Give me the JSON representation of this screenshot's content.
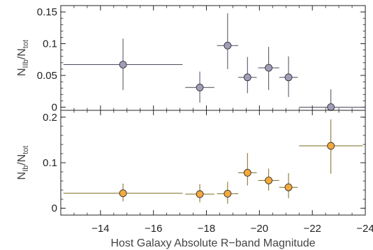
{
  "chart_data": [
    {
      "type": "scatter",
      "ylabel_main": "N",
      "ylabel_sub1": "IIb",
      "ylabel_sep": "/N",
      "ylabel_sub2": "tot",
      "xlim": [
        -12.5,
        -24
      ],
      "ylim": [
        -0.005,
        0.16
      ],
      "yticks": [
        0,
        0.05,
        0.1,
        0.15
      ],
      "ytick_labels": [
        "0",
        "0.05",
        "0.1",
        "0.15"
      ],
      "marker_color": "#a09db9",
      "errorbar_color": "#4a4a5e",
      "points": [
        {
          "x": -14.85,
          "y": 0.067,
          "xlo": -12.6,
          "xhi": -17.1,
          "ylo": 0.027,
          "yhi": 0.108
        },
        {
          "x": -17.75,
          "y": 0.031,
          "xlo": -17.2,
          "xhi": -18.3,
          "ylo": 0.007,
          "yhi": 0.056
        },
        {
          "x": -18.8,
          "y": 0.097,
          "xlo": -18.4,
          "xhi": -19.2,
          "ylo": 0.06,
          "yhi": 0.148
        },
        {
          "x": -19.55,
          "y": 0.047,
          "xlo": -19.2,
          "xhi": -19.9,
          "ylo": 0.022,
          "yhi": 0.079
        },
        {
          "x": -20.35,
          "y": 0.062,
          "xlo": -19.95,
          "xhi": -20.75,
          "ylo": 0.027,
          "yhi": 0.095
        },
        {
          "x": -21.1,
          "y": 0.047,
          "xlo": -20.75,
          "xhi": -21.45,
          "ylo": 0.016,
          "yhi": 0.08
        },
        {
          "x": -22.7,
          "y": 0.0,
          "xlo": -21.5,
          "xhi": -23.9,
          "ylo": 0.0,
          "yhi": 0.028
        }
      ]
    },
    {
      "type": "scatter",
      "ylabel_main": "N",
      "ylabel_sub1": "Ib",
      "ylabel_sep": "/N",
      "ylabel_sub2": "tot",
      "xlabel": "Host Galaxy Absolute R−band Magnitude",
      "xlim": [
        -12.5,
        -24
      ],
      "ylim": [
        -0.015,
        0.215
      ],
      "yticks": [
        0,
        0.1,
        0.2
      ],
      "ytick_labels": [
        "0",
        "0.1",
        "0.2"
      ],
      "xticks": [
        -14,
        -16,
        -18,
        -20,
        -22,
        -24
      ],
      "xtick_labels": [
        "−14",
        "−16",
        "−18",
        "−20",
        "−22",
        "−24"
      ],
      "marker_color": "#f5a93c",
      "errorbar_color": "#7a6a1e",
      "points": [
        {
          "x": -14.85,
          "y": 0.033,
          "xlo": -12.6,
          "xhi": -17.1,
          "ylo": 0.015,
          "yhi": 0.054
        },
        {
          "x": -17.75,
          "y": 0.031,
          "xlo": -17.2,
          "xhi": -18.3,
          "ylo": 0.013,
          "yhi": 0.053
        },
        {
          "x": -18.8,
          "y": 0.032,
          "xlo": -18.4,
          "xhi": -19.2,
          "ylo": 0.01,
          "yhi": 0.058
        },
        {
          "x": -19.55,
          "y": 0.078,
          "xlo": -19.2,
          "xhi": -19.9,
          "ylo": 0.05,
          "yhi": 0.121
        },
        {
          "x": -20.35,
          "y": 0.061,
          "xlo": -19.95,
          "xhi": -20.75,
          "ylo": 0.039,
          "yhi": 0.087
        },
        {
          "x": -21.1,
          "y": 0.046,
          "xlo": -20.75,
          "xhi": -21.45,
          "ylo": 0.022,
          "yhi": 0.077
        },
        {
          "x": -22.7,
          "y": 0.137,
          "xlo": -21.5,
          "xhi": -23.9,
          "ylo": 0.076,
          "yhi": 0.195
        }
      ]
    }
  ]
}
